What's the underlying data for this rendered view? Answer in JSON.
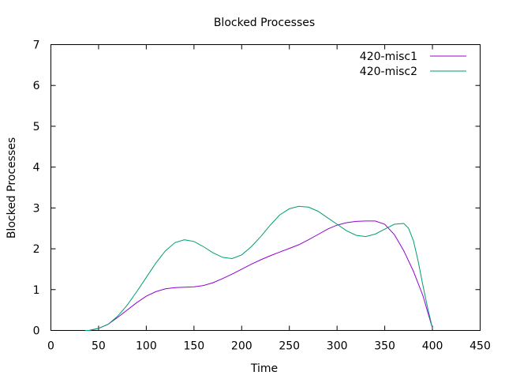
{
  "chart_data": {
    "type": "line",
    "title": "Blocked Processes",
    "xlabel": "Time",
    "ylabel": "Blocked Processes",
    "xlim": [
      0,
      450
    ],
    "ylim": [
      0,
      7
    ],
    "xticks": [
      0,
      50,
      100,
      150,
      200,
      250,
      300,
      350,
      400,
      450
    ],
    "yticks": [
      0,
      1,
      2,
      3,
      4,
      5,
      6,
      7
    ],
    "grid": false,
    "legend_position": "top-right",
    "series": [
      {
        "name": "420-misc1",
        "color": "#9400d3",
        "x": [
          36,
          40,
          50,
          60,
          70,
          80,
          90,
          100,
          110,
          120,
          130,
          140,
          150,
          160,
          170,
          180,
          190,
          200,
          210,
          220,
          230,
          240,
          250,
          260,
          270,
          280,
          290,
          300,
          310,
          320,
          330,
          340,
          350,
          360,
          370,
          380,
          390,
          400
        ],
        "y": [
          0.0,
          0.0,
          0.05,
          0.15,
          0.32,
          0.5,
          0.68,
          0.84,
          0.95,
          1.02,
          1.05,
          1.06,
          1.07,
          1.1,
          1.17,
          1.27,
          1.38,
          1.5,
          1.62,
          1.73,
          1.83,
          1.92,
          2.01,
          2.1,
          2.22,
          2.35,
          2.48,
          2.58,
          2.64,
          2.67,
          2.68,
          2.68,
          2.6,
          2.35,
          1.95,
          1.45,
          0.85,
          0.05
        ]
      },
      {
        "name": "420-misc2",
        "color": "#009e73",
        "x": [
          36,
          40,
          50,
          60,
          70,
          80,
          90,
          100,
          110,
          120,
          130,
          140,
          150,
          160,
          170,
          180,
          190,
          200,
          210,
          220,
          230,
          240,
          250,
          260,
          270,
          280,
          290,
          300,
          310,
          320,
          330,
          340,
          350,
          360,
          370,
          375,
          380,
          385,
          390,
          395,
          400
        ],
        "y": [
          0.0,
          0.0,
          0.05,
          0.15,
          0.35,
          0.62,
          0.95,
          1.3,
          1.65,
          1.95,
          2.15,
          2.22,
          2.18,
          2.05,
          1.9,
          1.79,
          1.76,
          1.85,
          2.05,
          2.3,
          2.58,
          2.83,
          2.98,
          3.04,
          3.02,
          2.92,
          2.76,
          2.6,
          2.44,
          2.33,
          2.3,
          2.36,
          2.48,
          2.6,
          2.62,
          2.5,
          2.2,
          1.7,
          1.1,
          0.55,
          0.05
        ]
      }
    ]
  }
}
